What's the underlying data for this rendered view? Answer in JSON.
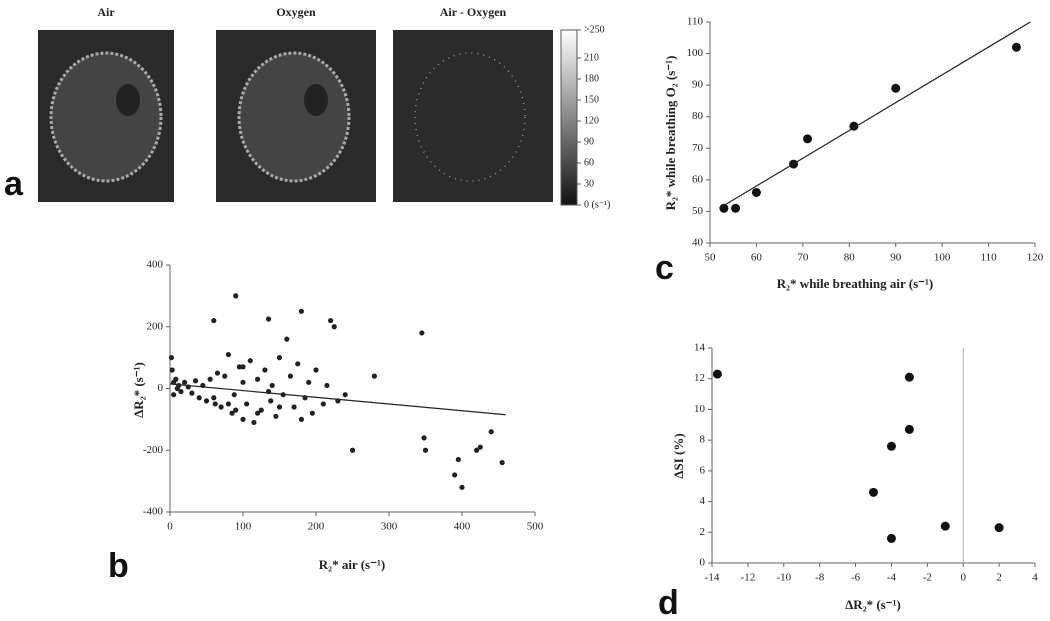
{
  "images": {
    "panel_label": "a",
    "titles": [
      "Air",
      "Oxygen",
      "Air - Oxygen"
    ],
    "colorbar": {
      "lim": [
        0,
        250
      ],
      "ticks": [
        {
          "value": 250,
          "label": ">250"
        },
        210,
        180,
        150,
        120,
        90,
        60,
        30,
        {
          "value": 0,
          "label": "0 (s⁻¹)"
        }
      ]
    }
  },
  "chart_data": [
    {
      "type": "scatter",
      "panel_label": "b",
      "xlabel": "R₂* air (s⁻¹)",
      "ylabel": "ΔR₂* (s⁻¹)",
      "color": "#222",
      "x": [
        2,
        3,
        5,
        5,
        8,
        10,
        12,
        15,
        20,
        25,
        30,
        35,
        40,
        45,
        50,
        55,
        60,
        62,
        65,
        70,
        75,
        80,
        85,
        88,
        90,
        95,
        100,
        100,
        105,
        110,
        115,
        120,
        125,
        130,
        135,
        138,
        140,
        145,
        150,
        155,
        160,
        165,
        170,
        175,
        180,
        185,
        190,
        195,
        200,
        210,
        215,
        220,
        225,
        230,
        240,
        250,
        280,
        345,
        348,
        350,
        390,
        395,
        400,
        420,
        425,
        440,
        455,
        60,
        90,
        135,
        180,
        120,
        100,
        80,
        150
      ],
      "values": [
        100,
        60,
        20,
        -20,
        30,
        0,
        10,
        -10,
        20,
        5,
        -15,
        25,
        -30,
        10,
        -40,
        30,
        220,
        -50,
        50,
        -60,
        40,
        110,
        -80,
        -20,
        300,
        70,
        -100,
        20,
        -50,
        90,
        -110,
        30,
        -70,
        60,
        225,
        -40,
        10,
        -90,
        100,
        -20,
        160,
        40,
        -60,
        80,
        250,
        -30,
        20,
        -80,
        60,
        -50,
        10,
        220,
        200,
        -40,
        -20,
        -200,
        40,
        180,
        -160,
        -200,
        -280,
        -230,
        -320,
        -200,
        -190,
        -140,
        -240,
        -30,
        -70,
        -10,
        -100,
        -80,
        70,
        -50,
        -60
      ],
      "trendline": {
        "x": [
          0,
          460
        ],
        "values": [
          15,
          -85
        ]
      },
      "xlim": [
        0,
        500
      ],
      "ylim": [
        -400,
        400
      ],
      "xticks": [
        0,
        100,
        200,
        300,
        400,
        500
      ],
      "yticks": [
        -400,
        -200,
        0,
        200,
        400
      ]
    },
    {
      "type": "scatter",
      "panel_label": "c",
      "xlabel": "R₂* while breathing air (s⁻¹)",
      "ylabel": "R₂* while breathing O₂ (s⁻¹)",
      "color": "#111",
      "x": [
        53,
        55.5,
        60,
        68,
        71,
        81,
        90,
        116
      ],
      "values": [
        51,
        51,
        56,
        65,
        73,
        77,
        89,
        102
      ],
      "trendline": {
        "x": [
          52,
          119
        ],
        "values": [
          51,
          110
        ]
      },
      "xlim": [
        50,
        120
      ],
      "ylim": [
        40,
        110
      ],
      "xticks": [
        50,
        60,
        70,
        80,
        90,
        100,
        110,
        120
      ],
      "yticks": [
        40,
        50,
        60,
        70,
        80,
        90,
        100,
        110
      ]
    },
    {
      "type": "scatter",
      "panel_label": "d",
      "xlabel": "ΔR₂* (s⁻¹)",
      "ylabel": "ΔSI (%)",
      "color": "#111",
      "x": [
        -13.7,
        -3,
        -3,
        -4,
        -5,
        -1,
        2,
        -4
      ],
      "values": [
        12.3,
        12.1,
        8.7,
        7.6,
        4.6,
        2.4,
        2.3,
        1.6
      ],
      "vline": 0,
      "xlim": [
        -14,
        4
      ],
      "ylim": [
        0,
        14
      ],
      "xticks": [
        -14,
        -12,
        -10,
        -8,
        -6,
        -4,
        -2,
        0,
        2,
        4
      ],
      "yticks": [
        0,
        2,
        4,
        6,
        8,
        10,
        12,
        14
      ]
    }
  ]
}
